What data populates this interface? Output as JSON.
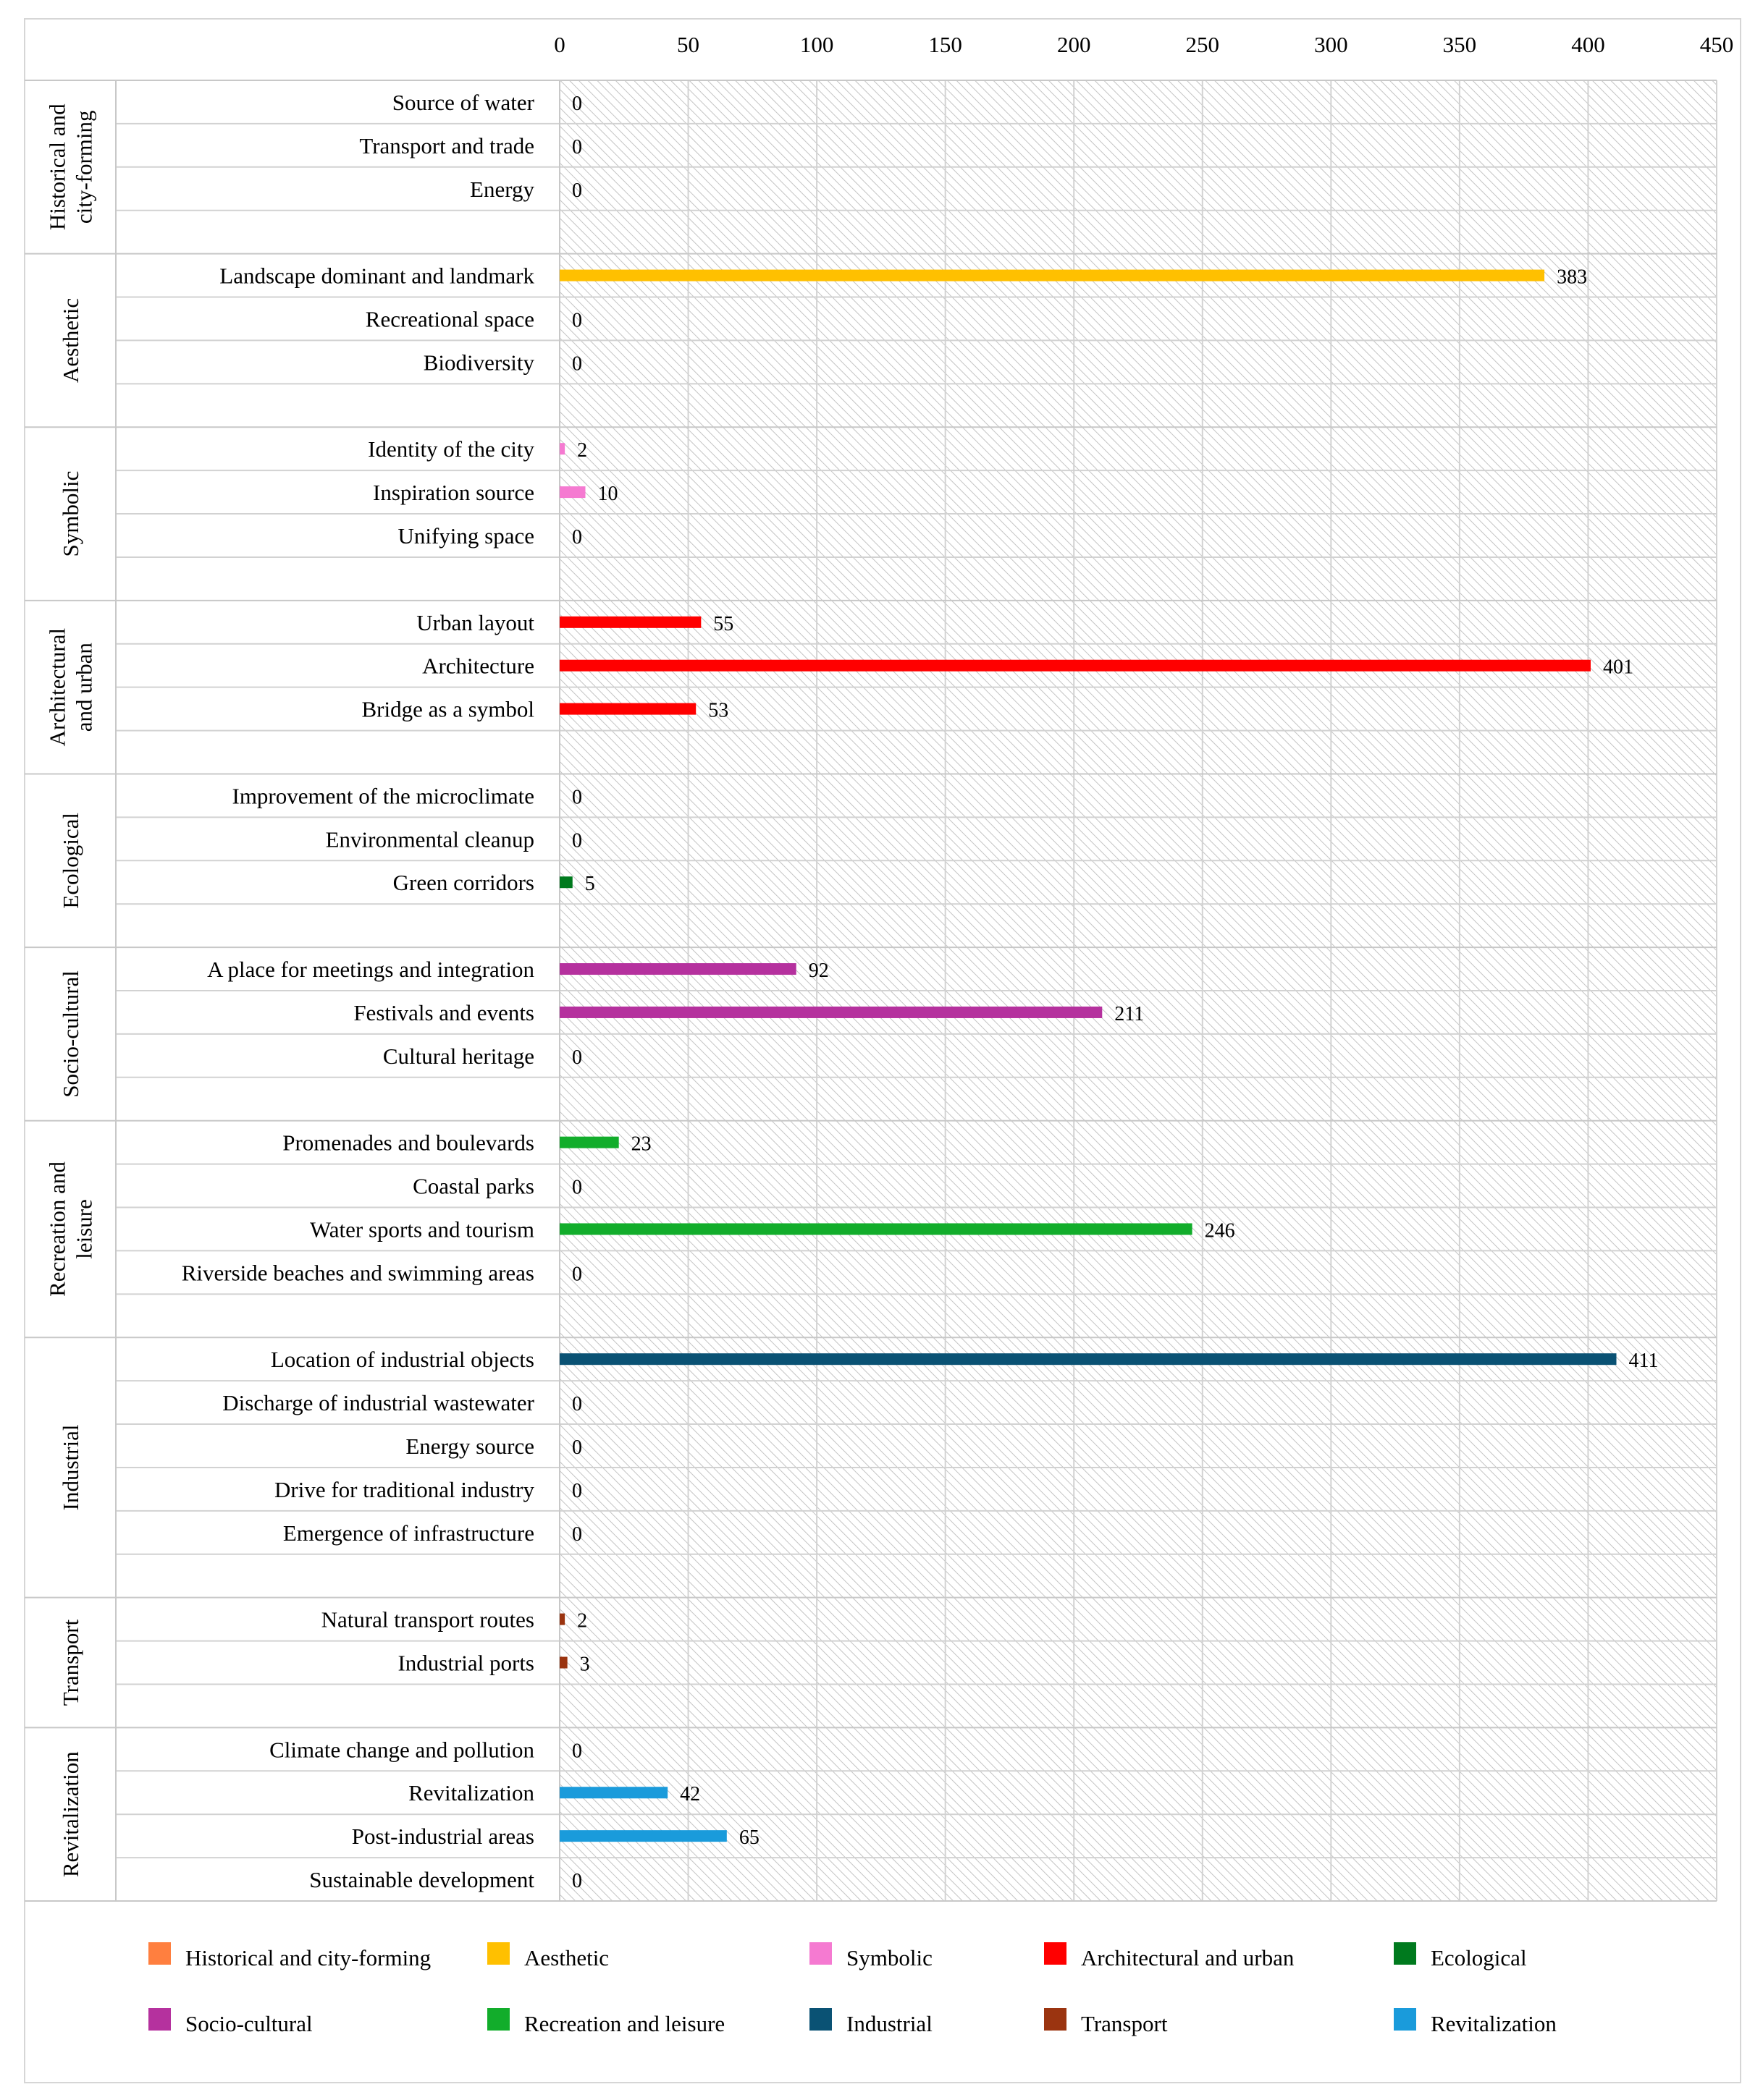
{
  "chart_data": {
    "type": "bar",
    "orientation": "horizontal",
    "title": "",
    "xlabel": "",
    "ylabel": "",
    "xlim": [
      0,
      450
    ],
    "x_ticks": [
      "0",
      "50",
      "100",
      "150",
      "200",
      "250",
      "300",
      "350",
      "400",
      "450"
    ],
    "grid": true,
    "legend_position": "bottom",
    "groups": [
      {
        "name": "Historical and city-forming",
        "label_lines": [
          "Historical and",
          "city-forming"
        ],
        "color": "#FF7F3F",
        "items": [
          {
            "label": "Source of water",
            "value": 0
          },
          {
            "label": "Transport and trade",
            "value": 0
          },
          {
            "label": "Energy",
            "value": 0
          }
        ]
      },
      {
        "name": "Aesthetic",
        "label_lines": [
          "Aesthetic"
        ],
        "color": "#FFC000",
        "items": [
          {
            "label": "Landscape dominant and landmark",
            "value": 383
          },
          {
            "label": "Recreational space",
            "value": 0
          },
          {
            "label": "Biodiversity",
            "value": 0
          }
        ]
      },
      {
        "name": "Symbolic",
        "label_lines": [
          "Symbolic"
        ],
        "color": "#F57AD1",
        "items": [
          {
            "label": "Identity of the city",
            "value": 2
          },
          {
            "label": "Inspiration source",
            "value": 10
          },
          {
            "label": "Unifying space",
            "value": 0
          }
        ]
      },
      {
        "name": "Architectural and urban",
        "label_lines": [
          "Architectural",
          "and urban"
        ],
        "color": "#FF0000",
        "items": [
          {
            "label": "Urban layout",
            "value": 55
          },
          {
            "label": "Architecture",
            "value": 401
          },
          {
            "label": "Bridge as a symbol",
            "value": 53
          }
        ]
      },
      {
        "name": "Ecological",
        "label_lines": [
          "Ecological"
        ],
        "color": "#007A1E",
        "items": [
          {
            "label": "Improvement of the microclimate",
            "value": 0
          },
          {
            "label": "Environmental cleanup",
            "value": 0
          },
          {
            "label": "Green corridors",
            "value": 5
          }
        ]
      },
      {
        "name": "Socio-cultural",
        "label_lines": [
          "Socio-cultural"
        ],
        "color": "#B5319E",
        "items": [
          {
            "label": "A place for meetings and integration",
            "value": 92
          },
          {
            "label": "Festivals and events",
            "value": 211
          },
          {
            "label": "Cultural heritage",
            "value": 0
          }
        ]
      },
      {
        "name": "Recreation and leisure",
        "label_lines": [
          "Recreation and",
          "leisure"
        ],
        "color": "#12AD2B",
        "items": [
          {
            "label": "Promenades and boulevards",
            "value": 23
          },
          {
            "label": "Coastal parks",
            "value": 0
          },
          {
            "label": "Water sports and tourism",
            "value": 246
          },
          {
            "label": "Riverside beaches and swimming areas",
            "value": 0
          }
        ]
      },
      {
        "name": "Industrial",
        "label_lines": [
          "Industrial"
        ],
        "color": "#0A5274",
        "items": [
          {
            "label": "Location of industrial objects",
            "value": 411
          },
          {
            "label": "Discharge of industrial wastewater",
            "value": 0
          },
          {
            "label": "Energy source",
            "value": 0
          },
          {
            "label": "Drive for traditional industry",
            "value": 0
          },
          {
            "label": "Emergence of infrastructure",
            "value": 0
          }
        ]
      },
      {
        "name": "Transport",
        "label_lines": [
          "Transport"
        ],
        "color": "#9B3410",
        "items": [
          {
            "label": "Natural transport routes",
            "value": 2
          },
          {
            "label": "Industrial ports",
            "value": 3
          }
        ]
      },
      {
        "name": "Revitalization",
        "label_lines": [
          "Revitalization"
        ],
        "color": "#1A9BDB",
        "items": [
          {
            "label": "Climate change and pollution",
            "value": 0
          },
          {
            "label": "Revitalization",
            "value": 42
          },
          {
            "label": "Post-industrial areas",
            "value": 65
          },
          {
            "label": "Sustainable development",
            "value": 0
          }
        ]
      }
    ],
    "legend": [
      "Historical and city-forming",
      "Aesthetic",
      "Symbolic",
      "Architectural and urban",
      "Ecological",
      "Socio-cultural",
      "Recreation and leisure",
      "Industrial",
      "Transport",
      "Revitalization"
    ]
  }
}
